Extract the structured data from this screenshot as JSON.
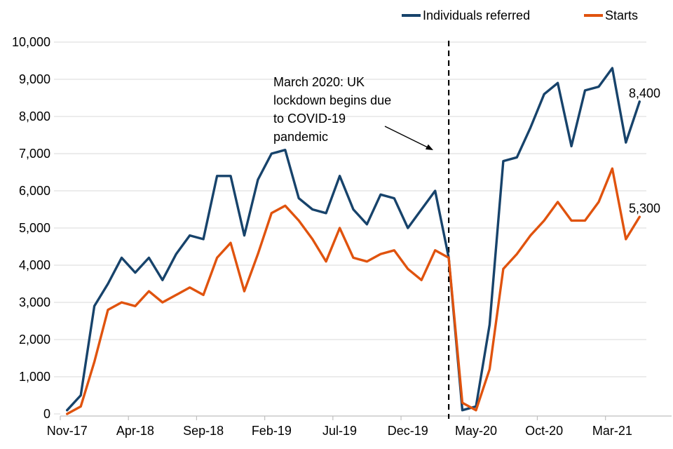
{
  "legend": [
    {
      "label": "Individuals referred",
      "color": "#17436B"
    },
    {
      "label": "Starts",
      "color": "#E0530E"
    }
  ],
  "annotation": {
    "text": "March 2020: UK\nlockdown begins due\nto COVID-19\npandemic"
  },
  "chart_data": {
    "type": "line",
    "title": "",
    "xlabel": "",
    "ylabel": "",
    "x": [
      "Nov-17",
      "Dec-17",
      "Jan-18",
      "Feb-18",
      "Mar-18",
      "Apr-18",
      "May-18",
      "Jun-18",
      "Jul-18",
      "Aug-18",
      "Sep-18",
      "Oct-18",
      "Nov-18",
      "Dec-18",
      "Jan-19",
      "Feb-19",
      "Mar-19",
      "Apr-19",
      "May-19",
      "Jun-19",
      "Jul-19",
      "Aug-19",
      "Sep-19",
      "Oct-19",
      "Nov-19",
      "Dec-19",
      "Jan-20",
      "Feb-20",
      "Mar-20",
      "Apr-20",
      "May-20",
      "Jun-20",
      "Jul-20",
      "Aug-20",
      "Sep-20",
      "Oct-20",
      "Nov-20",
      "Dec-20",
      "Jan-21",
      "Feb-21",
      "Mar-21",
      "Apr-21",
      "May-21"
    ],
    "series": [
      {
        "name": "Individuals referred",
        "color": "#17436B",
        "end_label": "8,400",
        "values": [
          100,
          500,
          2900,
          3500,
          4200,
          3800,
          4200,
          3600,
          4300,
          4800,
          4700,
          6400,
          6400,
          4800,
          6300,
          7000,
          7100,
          5800,
          5500,
          5400,
          6400,
          5500,
          5100,
          5900,
          5800,
          5000,
          5500,
          6000,
          4200,
          100,
          200,
          2400,
          6800,
          6900,
          7700,
          8600,
          8900,
          7200,
          8700,
          8800,
          9300,
          7300,
          8400
        ]
      },
      {
        "name": "Starts",
        "color": "#E0530E",
        "end_label": "5,300",
        "values": [
          0,
          200,
          1400,
          2800,
          3000,
          2900,
          3300,
          3000,
          3200,
          3400,
          3200,
          4200,
          4600,
          3300,
          4300,
          5400,
          5600,
          5200,
          4700,
          4100,
          5000,
          4200,
          4100,
          4300,
          4400,
          3900,
          3600,
          4400,
          4200,
          300,
          100,
          1200,
          3900,
          4300,
          4800,
          5200,
          5700,
          5200,
          5200,
          5700,
          6600,
          4700,
          5300
        ]
      }
    ],
    "ylim": [
      0,
      10000
    ],
    "y_tick_labels": [
      "0",
      "1,000",
      "2,000",
      "3,000",
      "4,000",
      "5,000",
      "6,000",
      "7,000",
      "8,000",
      "9,000",
      "10,000"
    ],
    "x_tick_labels": [
      "Nov-17",
      "Apr-18",
      "Sep-18",
      "Feb-19",
      "Jul-19",
      "Dec-19",
      "May-20",
      "Oct-20",
      "Mar-21"
    ],
    "x_tick_every": 5,
    "grid": "horizontal",
    "legend_position": "top",
    "grid_color": "#D9D9D9",
    "axis_color": "#BFBFBF",
    "vline": {
      "x_label": "Mar-20",
      "x_index": 28,
      "style": "dashed",
      "color": "#000000"
    }
  }
}
